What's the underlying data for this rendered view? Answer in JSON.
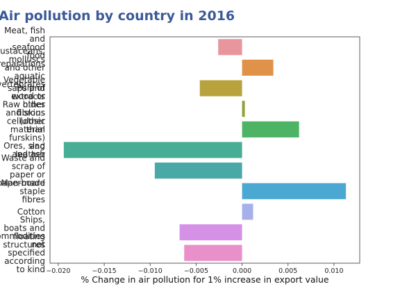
{
  "chart_data": {
    "type": "bar",
    "orientation": "horizontal",
    "title": "Air pollution by country in 2016",
    "xlabel": "% Change in air pollution for 1% increase in export value",
    "ylabel": "",
    "xlim": [
      -0.0209,
      0.0128
    ],
    "xticks": [
      -0.02,
      -0.015,
      -0.01,
      -0.005,
      0.0,
      0.005,
      0.01
    ],
    "xtick_labels": [
      "−0.020",
      "−0.015",
      "−0.010",
      "−0.005",
      "0.000",
      "0.005",
      "0.010"
    ],
    "grid": false,
    "categories": [
      "Meat, fish and seafood food preparations",
      "Crustaceans, molluscs and other aquatic invertebrates",
      "Vegetable saps and extracts",
      "Pulp of wood or other fibrous cellulosic material",
      "Raw hides and skins (other than furskins) and leather",
      "Ores, slag and ash",
      "Waste and scrap of paper or paperboard",
      "Man-made staple fibres",
      "Cotton",
      "Ships, boats and floating structures",
      "Commodities not specified according to kind"
    ],
    "values": [
      -0.0026,
      0.0034,
      -0.0046,
      0.0003,
      0.0062,
      -0.0194,
      -0.0095,
      0.0113,
      0.0012,
      -0.0068,
      -0.0063
    ],
    "colors": [
      "#e8969e",
      "#e09348",
      "#b8a23c",
      "#8ea13a",
      "#4db365",
      "#47ae95",
      "#4aa8a7",
      "#4aa8d2",
      "#a6b0ea",
      "#d591e6",
      "#e990cb"
    ]
  }
}
